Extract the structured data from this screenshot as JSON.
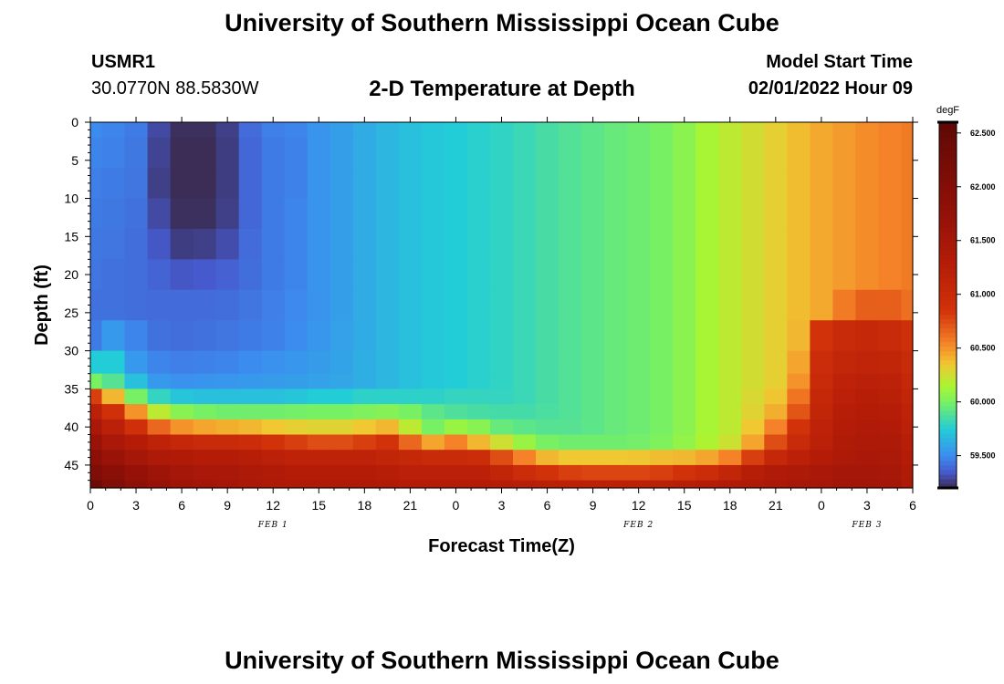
{
  "header": {
    "title": "University of Southern Mississippi Ocean Cube",
    "station_id": "USMR1",
    "station_coords": "30.0770N  88.5830W",
    "chart_title": "2-D Temperature at Depth",
    "model_label": "Model Start Time",
    "model_time": "02/01/2022 Hour 09"
  },
  "footer": {
    "title": "University of Southern Mississippi Ocean Cube"
  },
  "chart_data": {
    "type": "heatmap",
    "title": "2-D Temperature at Depth",
    "xlabel": "Forecast Time(Z)",
    "ylabel": "Depth (ft)",
    "x_unit": "forecast hours from 02/01/2022 00Z",
    "xlim": [
      0,
      54
    ],
    "ylim": [
      48,
      0
    ],
    "x_ticks": [
      0,
      3,
      6,
      9,
      12,
      15,
      18,
      21,
      24,
      27,
      30,
      33,
      36,
      39,
      42,
      45,
      48,
      51,
      54
    ],
    "x_tick_labels": [
      "0",
      "3",
      "6",
      "9",
      "12",
      "15",
      "18",
      "21",
      "0",
      "3",
      "6",
      "9",
      "12",
      "15",
      "18",
      "21",
      "0",
      "3",
      "6"
    ],
    "y_ticks": [
      0,
      5,
      10,
      15,
      20,
      25,
      30,
      35,
      40,
      45
    ],
    "date_labels": [
      {
        "x": 12,
        "text": "FEB 1"
      },
      {
        "x": 36,
        "text": "FEB 2"
      },
      {
        "x": 51,
        "text": "FEB 3"
      }
    ],
    "colorbar": {
      "unit": "degF",
      "min": 59.2,
      "max": 62.6,
      "ticks": [
        59.5,
        60.0,
        60.5,
        61.0,
        61.5,
        62.0,
        62.5
      ],
      "tick_labels": [
        "59.500",
        "60.000",
        "60.500",
        "61.000",
        "61.500",
        "62.000",
        "62.500"
      ]
    },
    "x": [
      0,
      1.5,
      3,
      4.5,
      6,
      7.5,
      9,
      10.5,
      12,
      13.5,
      15,
      16.5,
      18,
      19.5,
      21,
      22.5,
      24,
      25.5,
      27,
      28.5,
      30,
      31.5,
      33,
      34.5,
      36,
      37.5,
      39,
      40.5,
      42,
      43.5,
      45,
      46.5,
      48,
      49.5,
      51,
      52.5,
      54
    ],
    "y": [
      0,
      4,
      8,
      12,
      16,
      20,
      24,
      28,
      32,
      34,
      36,
      38,
      40,
      42,
      44,
      46,
      48
    ],
    "z": [
      [
        59.5,
        59.48,
        59.45,
        59.3,
        59.22,
        59.22,
        59.27,
        59.4,
        59.46,
        59.48,
        59.53,
        59.57,
        59.62,
        59.66,
        59.7,
        59.73,
        59.75,
        59.77,
        59.79,
        59.82,
        59.86,
        59.89,
        59.92,
        59.95,
        59.97,
        60.0,
        60.06,
        60.14,
        60.2,
        60.26,
        60.32,
        60.38,
        60.44,
        60.48,
        60.52,
        60.55,
        60.58
      ],
      [
        59.48,
        59.47,
        59.44,
        59.28,
        59.21,
        59.21,
        59.26,
        59.39,
        59.45,
        59.47,
        59.53,
        59.57,
        59.62,
        59.66,
        59.7,
        59.73,
        59.75,
        59.77,
        59.79,
        59.82,
        59.86,
        59.89,
        59.92,
        59.95,
        59.97,
        60.0,
        60.06,
        60.14,
        60.2,
        60.26,
        60.32,
        60.38,
        60.44,
        60.48,
        60.52,
        60.55,
        60.58
      ],
      [
        59.46,
        59.45,
        59.43,
        59.27,
        59.21,
        59.21,
        59.26,
        59.39,
        59.45,
        59.47,
        59.53,
        59.57,
        59.62,
        59.66,
        59.7,
        59.73,
        59.75,
        59.77,
        59.79,
        59.82,
        59.86,
        59.89,
        59.92,
        59.95,
        59.97,
        60.0,
        60.06,
        60.14,
        60.2,
        60.26,
        60.32,
        60.38,
        60.44,
        60.48,
        60.52,
        60.55,
        60.58
      ],
      [
        59.45,
        59.44,
        59.42,
        59.3,
        59.22,
        59.22,
        59.27,
        59.39,
        59.45,
        59.48,
        59.53,
        59.57,
        59.62,
        59.66,
        59.7,
        59.73,
        59.75,
        59.77,
        59.79,
        59.82,
        59.86,
        59.89,
        59.92,
        59.95,
        59.97,
        60.0,
        60.06,
        60.14,
        60.2,
        60.26,
        60.32,
        60.38,
        60.44,
        60.48,
        60.52,
        60.55,
        60.58
      ],
      [
        59.44,
        59.43,
        59.41,
        59.34,
        59.26,
        59.27,
        59.31,
        59.4,
        59.45,
        59.48,
        59.53,
        59.57,
        59.62,
        59.66,
        59.7,
        59.73,
        59.75,
        59.77,
        59.79,
        59.82,
        59.86,
        59.89,
        59.92,
        59.95,
        59.97,
        60.0,
        60.06,
        60.14,
        60.2,
        60.26,
        60.32,
        60.38,
        60.44,
        60.48,
        60.52,
        60.55,
        60.58
      ],
      [
        59.43,
        59.42,
        59.41,
        59.38,
        59.34,
        59.35,
        59.37,
        59.41,
        59.45,
        59.48,
        59.53,
        59.57,
        59.62,
        59.66,
        59.7,
        59.73,
        59.75,
        59.77,
        59.79,
        59.82,
        59.86,
        59.89,
        59.92,
        59.95,
        59.97,
        60.0,
        60.06,
        60.14,
        60.2,
        60.26,
        60.32,
        60.38,
        60.44,
        60.48,
        60.52,
        60.55,
        60.58
      ],
      [
        59.42,
        59.42,
        59.41,
        59.4,
        59.4,
        59.4,
        59.41,
        59.43,
        59.46,
        59.49,
        59.53,
        59.57,
        59.62,
        59.66,
        59.7,
        59.73,
        59.75,
        59.77,
        59.79,
        59.82,
        59.86,
        59.89,
        59.92,
        59.95,
        59.97,
        60.0,
        60.06,
        60.14,
        60.2,
        60.26,
        60.32,
        60.38,
        60.44,
        60.58,
        60.68,
        60.68,
        60.62
      ],
      [
        59.45,
        59.55,
        59.48,
        59.42,
        59.41,
        59.42,
        59.43,
        59.45,
        59.47,
        59.5,
        59.54,
        59.58,
        59.62,
        59.66,
        59.7,
        59.73,
        59.75,
        59.77,
        59.79,
        59.82,
        59.86,
        59.89,
        59.92,
        59.95,
        59.97,
        60.0,
        60.06,
        60.14,
        60.2,
        60.26,
        60.32,
        60.4,
        60.85,
        61.0,
        61.05,
        61.0,
        60.92
      ],
      [
        59.75,
        59.75,
        59.55,
        59.48,
        59.46,
        59.47,
        59.48,
        59.5,
        59.52,
        59.54,
        59.56,
        59.59,
        59.63,
        59.66,
        59.7,
        59.73,
        59.75,
        59.77,
        59.79,
        59.82,
        59.86,
        59.89,
        59.92,
        59.95,
        59.97,
        60.0,
        60.06,
        60.14,
        60.2,
        60.26,
        60.32,
        60.45,
        60.95,
        61.08,
        61.12,
        61.1,
        61.0
      ],
      [
        60.0,
        59.9,
        59.7,
        59.55,
        59.52,
        59.53,
        59.54,
        59.55,
        59.56,
        59.57,
        59.58,
        59.6,
        59.63,
        59.66,
        59.7,
        59.73,
        59.75,
        59.77,
        59.79,
        59.82,
        59.86,
        59.89,
        59.92,
        59.95,
        59.97,
        60.0,
        60.06,
        60.14,
        60.2,
        60.26,
        60.32,
        60.5,
        61.0,
        61.15,
        61.2,
        61.18,
        61.05
      ],
      [
        60.8,
        60.4,
        60.0,
        59.8,
        59.72,
        59.7,
        59.7,
        59.7,
        59.7,
        59.72,
        59.75,
        59.75,
        59.78,
        59.78,
        59.78,
        59.78,
        59.8,
        59.8,
        59.8,
        59.82,
        59.86,
        59.89,
        59.92,
        59.95,
        59.97,
        60.0,
        60.06,
        60.14,
        60.2,
        60.28,
        60.36,
        60.6,
        61.05,
        61.2,
        61.25,
        61.22,
        61.1
      ],
      [
        61.2,
        60.9,
        60.5,
        60.2,
        60.05,
        60.0,
        59.98,
        59.98,
        59.98,
        59.99,
        60.0,
        60.0,
        60.02,
        60.04,
        60.0,
        59.92,
        59.88,
        59.86,
        59.85,
        59.85,
        59.87,
        59.89,
        59.92,
        59.95,
        59.97,
        60.0,
        60.06,
        60.14,
        60.2,
        60.3,
        60.42,
        60.72,
        61.1,
        61.25,
        61.3,
        61.28,
        61.15
      ],
      [
        61.45,
        61.2,
        60.9,
        60.65,
        60.5,
        60.45,
        60.42,
        60.4,
        60.35,
        60.32,
        60.3,
        60.3,
        60.35,
        60.4,
        60.2,
        60.0,
        60.1,
        60.05,
        59.95,
        59.92,
        59.9,
        59.9,
        59.92,
        59.95,
        59.97,
        60.0,
        60.06,
        60.14,
        60.2,
        60.35,
        60.55,
        60.85,
        61.15,
        61.3,
        61.35,
        61.32,
        61.2
      ],
      [
        61.65,
        61.45,
        61.3,
        61.15,
        61.05,
        61.0,
        61.0,
        60.95,
        60.85,
        60.8,
        60.75,
        60.75,
        60.8,
        60.85,
        60.65,
        60.45,
        60.55,
        60.4,
        60.25,
        60.1,
        60.0,
        59.98,
        59.98,
        59.98,
        59.99,
        60.02,
        60.08,
        60.16,
        60.24,
        60.45,
        60.75,
        61.0,
        61.2,
        61.35,
        61.4,
        61.38,
        61.25
      ],
      [
        61.85,
        61.65,
        61.5,
        61.4,
        61.35,
        61.3,
        61.3,
        61.25,
        61.2,
        61.15,
        61.15,
        61.15,
        61.15,
        61.1,
        61.05,
        61.0,
        61.0,
        60.95,
        60.75,
        60.55,
        60.4,
        60.35,
        60.35,
        60.35,
        60.36,
        60.38,
        60.4,
        60.45,
        60.55,
        60.8,
        61.05,
        61.2,
        61.3,
        61.4,
        61.45,
        61.42,
        61.3
      ],
      [
        62.1,
        61.9,
        61.7,
        61.6,
        61.5,
        61.45,
        61.45,
        61.4,
        61.35,
        61.3,
        61.3,
        61.3,
        61.3,
        61.25,
        61.2,
        61.2,
        61.2,
        61.2,
        61.1,
        60.95,
        60.85,
        60.8,
        60.78,
        60.78,
        60.78,
        60.8,
        60.85,
        60.95,
        61.1,
        61.25,
        61.35,
        61.4,
        61.45,
        61.5,
        61.5,
        61.48,
        61.35
      ],
      [
        62.4,
        62.1,
        61.85,
        61.7,
        61.6,
        61.55,
        61.5,
        61.45,
        61.4,
        61.4,
        61.4,
        61.4,
        61.4,
        61.35,
        61.3,
        61.3,
        61.3,
        61.3,
        61.28,
        61.25,
        61.22,
        61.2,
        61.2,
        61.2,
        61.2,
        61.22,
        61.25,
        61.3,
        61.35,
        61.4,
        61.45,
        61.5,
        61.5,
        61.55,
        61.55,
        61.52,
        61.4
      ]
    ]
  }
}
